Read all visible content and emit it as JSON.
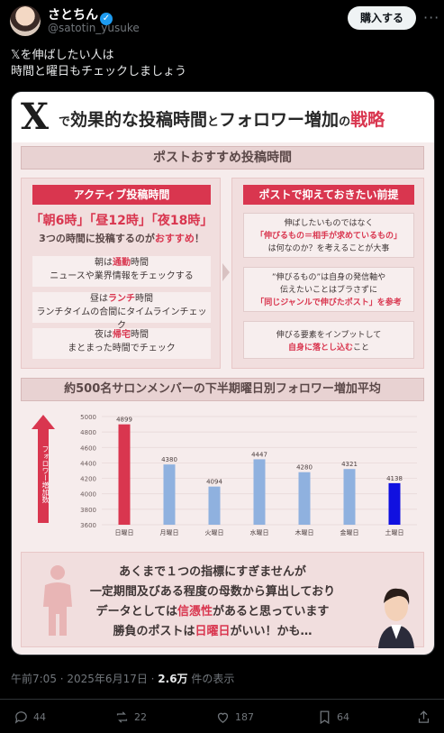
{
  "user": {
    "name": "さとちん",
    "handle": "@satotin_yusuke"
  },
  "header": {
    "buy_label": "購入する",
    "more_label": "···"
  },
  "tweet": {
    "line1": "𝕏を伸ばしたい人は",
    "line2": "時間と曜日もチェックしましょう"
  },
  "infographic": {
    "title_x": "X",
    "title_pre": "で",
    "title_mid": "効果的な投稿時間",
    "title_and": "と",
    "title_mid2": "フォロワー増加",
    "title_no": "の",
    "title_end": "戦略",
    "section_title": "ポストおすすめ投稿時間",
    "left_head": "アクティブ投稿時間",
    "times": "「朝6時」「昼12時」「夜18時」",
    "times_sub_pre": "3つの時間に投稿するのが",
    "times_sub_hl": "おすすめ",
    "times_sub_post": "！",
    "blocks": [
      {
        "pre": "朝は",
        "hl": "通勤",
        "post": "時間",
        "line2": "ニュースや業界情報をチェックする"
      },
      {
        "pre": "昼は",
        "hl": "ランチ",
        "post": "時間",
        "line2": "ランチタイムの合間にタイムラインチェック"
      },
      {
        "pre": "夜は",
        "hl": "帰宅",
        "post": "時間",
        "line2": "まとまった時間でチェック"
      }
    ],
    "right_head": "ポストで抑えておきたい前提",
    "notes": [
      {
        "l1": "伸ばしたいものではなく",
        "l2": "「伸びるもの＝相手が求めているもの」",
        "l3": "は何なのか？を考えることが大事"
      },
      {
        "l1": "”伸びるもの”は自身の発信軸や",
        "l2": "伝えたいことはブラさずに",
        "l3": "「同じジャンルで伸びたポスト」を参考"
      },
      {
        "l1": "伸びる要素をインプットして",
        "l2": "自身に落とし込む",
        "l3": "こと"
      }
    ],
    "chart_title": "約500名サロンメンバーの下半期曜日別フォロワー増加平均",
    "ylabel": "フォロワー増加数",
    "bottom": {
      "l1": "あくまで１つの指標にすぎませんが",
      "l2": "一定期間及びある程度の母数から算出しており",
      "l3_pre": "データとしては",
      "l3_hl": "信憑性",
      "l3_post": "があると思っています",
      "l4_pre": "勝負のポストは",
      "l4_hl": "日曜日",
      "l4_post": "がいい！かも…"
    }
  },
  "chart_data": {
    "type": "bar",
    "categories": [
      "日曜日",
      "月曜日",
      "火曜日",
      "水曜日",
      "木曜日",
      "金曜日",
      "土曜日"
    ],
    "values": [
      4899,
      4380,
      4094,
      4447,
      4280,
      4321,
      4138
    ],
    "bar_colors": [
      "#d9364f",
      "#8fb1df",
      "#8fb1df",
      "#8fb1df",
      "#8fb1df",
      "#8fb1df",
      "#1010e0"
    ],
    "title": "約500名サロンメンバーの下半期曜日別フォロワー増加平均",
    "ylabel": "フォロワー増加数",
    "ylim": [
      3600,
      5000
    ],
    "yticks": [
      3600,
      3800,
      4000,
      4200,
      4400,
      4600,
      4800,
      5000
    ],
    "grid": true
  },
  "meta": {
    "time": "午前7:05 · 2025年6月17日 · ",
    "views_num": "2.6万",
    "views_label": " 件の表示"
  },
  "actions": {
    "replies": "44",
    "reposts": "22",
    "likes": "187",
    "bookmarks": "64"
  }
}
